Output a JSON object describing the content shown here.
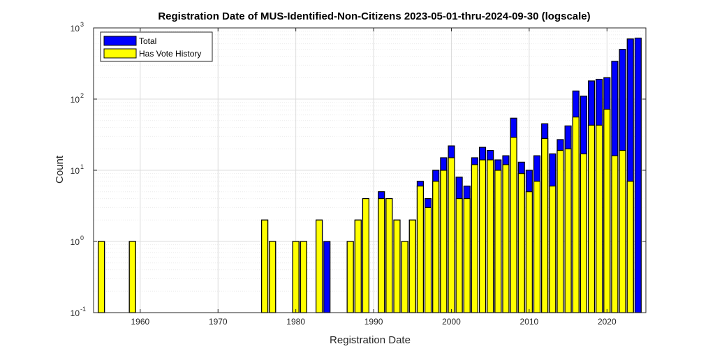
{
  "chart_data": {
    "type": "bar",
    "title": "Registration Date of MUS-Identified-Non-Citizens 2023-05-01-thru-2024-09-30 (logscale)",
    "xlabel": "Registration Date",
    "ylabel": "Count",
    "yscale": "log",
    "xlim": [
      1954,
      2025
    ],
    "ylim": [
      0.1,
      1000
    ],
    "xticks": [
      1960,
      1970,
      1980,
      1990,
      2000,
      2010,
      2020
    ],
    "yticks": [
      {
        "base": "10",
        "exp": "-1"
      },
      {
        "base": "10",
        "exp": "0"
      },
      {
        "base": "10",
        "exp": "1"
      },
      {
        "base": "10",
        "exp": "2"
      },
      {
        "base": "10",
        "exp": "3"
      }
    ],
    "grid": true,
    "legend_position": "top-left",
    "x": [
      1955,
      1959,
      1976,
      1977,
      1980,
      1981,
      1983,
      1984,
      1987,
      1988,
      1989,
      1991,
      1992,
      1993,
      1994,
      1995,
      1996,
      1997,
      1998,
      1999,
      2000,
      2001,
      2002,
      2003,
      2004,
      2005,
      2006,
      2007,
      2008,
      2009,
      2010,
      2011,
      2012,
      2013,
      2014,
      2015,
      2016,
      2017,
      2018,
      2019,
      2020,
      2021,
      2022,
      2023,
      2024
    ],
    "series": [
      {
        "name": "Total",
        "color": "#0000ff",
        "values": [
          1,
          1,
          2,
          1,
          1,
          1,
          2,
          1,
          1,
          2,
          4,
          5,
          4,
          2,
          1,
          2,
          7,
          4,
          10,
          15,
          22,
          8,
          6,
          15,
          21,
          19,
          14,
          16,
          54,
          13,
          10,
          16,
          45,
          17,
          27,
          42,
          130,
          110,
          180,
          190,
          200,
          340,
          500,
          700,
          720
        ]
      },
      {
        "name": "Has Vote History",
        "color": "#ffff00",
        "values": [
          1,
          1,
          2,
          1,
          1,
          1,
          2,
          0,
          1,
          2,
          4,
          4,
          4,
          2,
          1,
          2,
          6,
          3,
          7,
          10,
          15,
          4,
          4,
          12,
          14,
          14,
          10,
          12,
          29,
          9,
          5,
          7,
          28,
          6,
          19,
          20,
          56,
          17,
          43,
          43,
          72,
          16,
          19,
          7,
          0
        ]
      }
    ]
  }
}
